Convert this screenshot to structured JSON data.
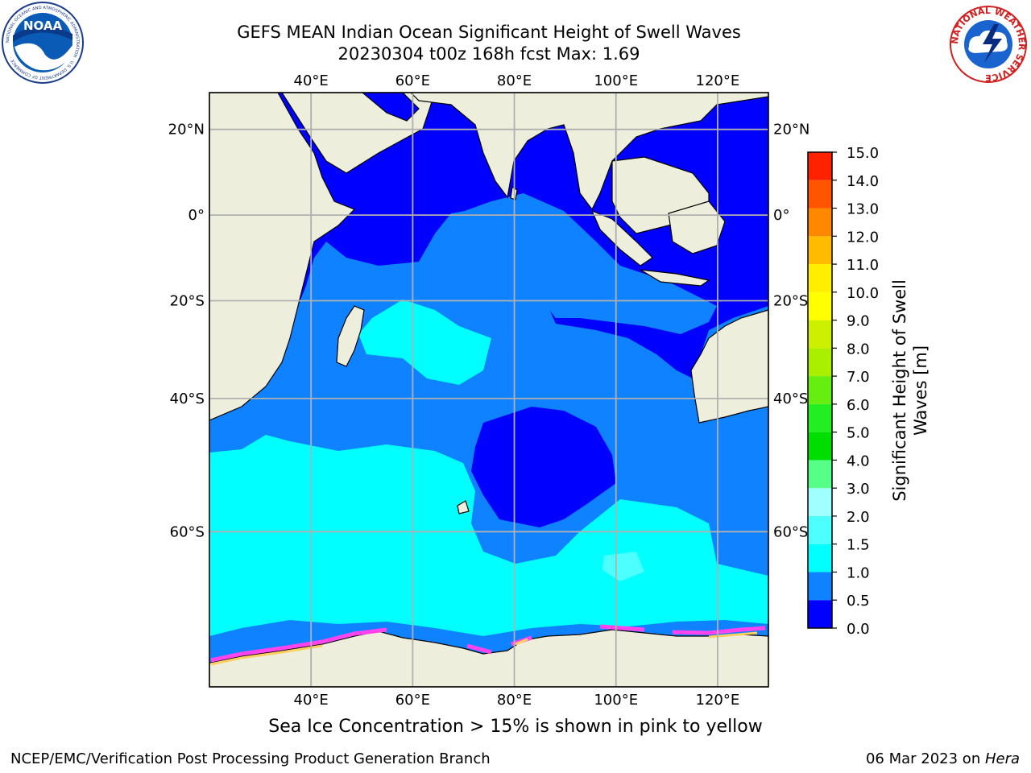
{
  "header": {
    "title_line1": "GEFS MEAN Indian Ocean Significant Height of Swell Waves",
    "title_line2": "20230304 t00z 168h fcst   Max: 1.69"
  },
  "logos": {
    "noaa_label": "NOAA",
    "noaa_ring_text": "NATIONAL OCEANIC AND ATMOSPHERIC ADMINISTRATION · U.S. DEPARTMENT OF COMMERCE ·",
    "nws_ring_text": "NATIONAL WEATHER SERVICE"
  },
  "map": {
    "lon_range": [
      20,
      130
    ],
    "lat_range": [
      -74,
      28
    ],
    "lon_ticks": [
      {
        "value": 40,
        "label": "40°E"
      },
      {
        "value": 60,
        "label": "60°E"
      },
      {
        "value": 80,
        "label": "80°E"
      },
      {
        "value": 100,
        "label": "100°E"
      },
      {
        "value": 120,
        "label": "120°E"
      }
    ],
    "lat_ticks": [
      {
        "value": 20,
        "label": "20°N"
      },
      {
        "value": 0,
        "label": "0°"
      },
      {
        "value": -20,
        "label": "20°S"
      },
      {
        "value": -40,
        "label": "40°S"
      },
      {
        "value": -60,
        "label": "60°S"
      }
    ],
    "grid": true,
    "colors": {
      "land": "#eeeedd",
      "ocean_deep": "#0000ff",
      "band_05_10": "#0f82ff",
      "band_10_15": "#00ffff",
      "band_15_20": "#4dffff",
      "ice_pink": "#ff44ee",
      "ice_yellow": "#ffd060"
    }
  },
  "colorbar": {
    "label": "Significant Height of Swell Waves [m]",
    "label_line1": "Significant Height of Swell",
    "label_line2": "Waves [m]",
    "ticks": [
      "0.0",
      "0.5",
      "1.0",
      "1.5",
      "2.0",
      "3.0",
      "4.0",
      "5.0",
      "6.0",
      "7.0",
      "8.0",
      "9.0",
      "10.0",
      "11.0",
      "12.0",
      "13.0",
      "14.0",
      "15.0"
    ],
    "colors": [
      "#0000ff",
      "#0f82ff",
      "#00ffff",
      "#4dffff",
      "#a0ffff",
      "#55ff88",
      "#00dd00",
      "#22ee22",
      "#66ee11",
      "#aaee00",
      "#ccf000",
      "#ffff00",
      "#ffee00",
      "#ffbb00",
      "#ff8800",
      "#ff5500",
      "#ff2200"
    ]
  },
  "caption": "Sea Ice Concentration > 15% is shown in pink to yellow",
  "footer": {
    "left": "NCEP/EMC/Verification Post Processing Product Generation Branch",
    "right_date": "06 Mar 2023 on ",
    "right_host": "Hera"
  }
}
